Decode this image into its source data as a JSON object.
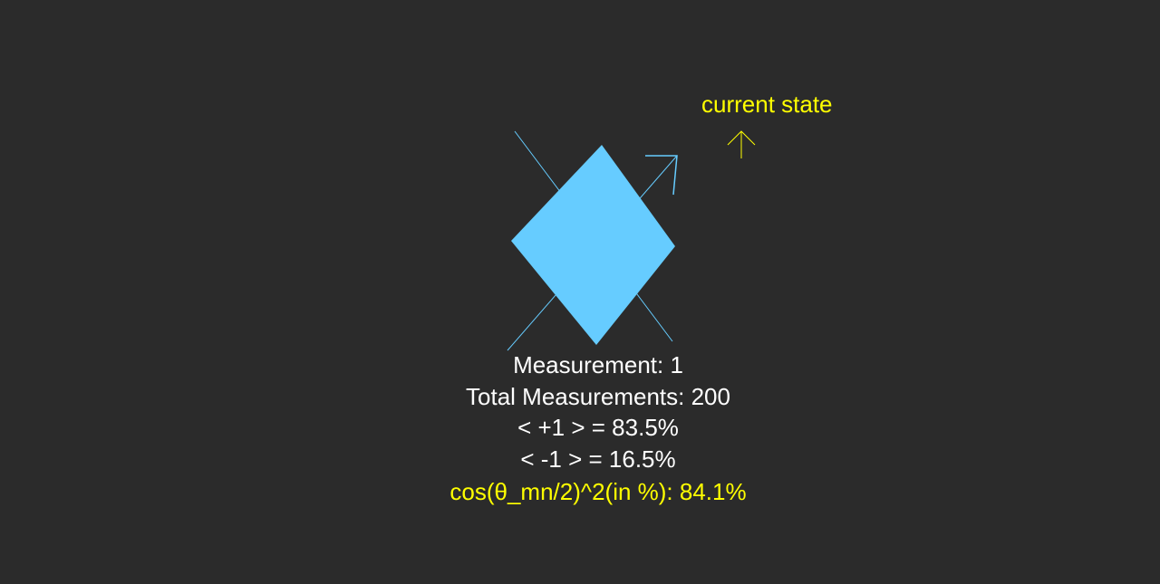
{
  "current_state_label": "current state",
  "readouts": {
    "measurement": "Measurement: 1",
    "total_measurements": "Total Measurements: 200",
    "plus_one": "< +1 > = 83.5%",
    "minus_one": "< -1 > = 16.5%",
    "cos_formula": "cos(θ_mn/2)^2(in %): 84.1%"
  },
  "colors": {
    "background": "#2b2b2b",
    "shape": "#66ccff",
    "highlight": "#ffff00",
    "text": "#ffffff"
  }
}
